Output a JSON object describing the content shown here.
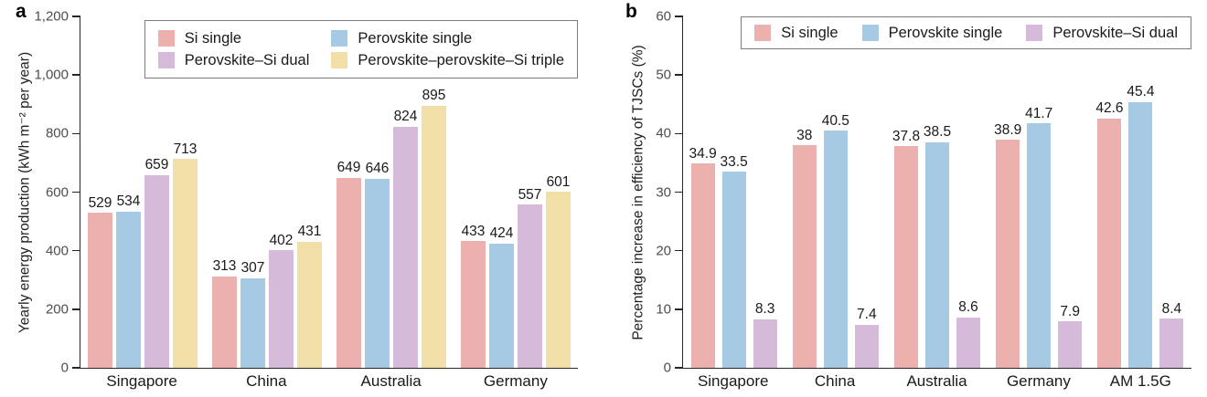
{
  "chart_data": [
    {
      "type": "bar",
      "panel_label": "a",
      "title": "",
      "xlabel": "",
      "ylabel": "Yearly energy production (kWh m⁻² per year)",
      "ylim": [
        0,
        1200
      ],
      "grid": false,
      "legend_position": "top-right-inside",
      "legend_columns": 2,
      "yticks": [
        {
          "value": 0,
          "label": "0"
        },
        {
          "value": 200,
          "label": "200"
        },
        {
          "value": 400,
          "label": "400"
        },
        {
          "value": 600,
          "label": "600"
        },
        {
          "value": 800,
          "label": "800"
        },
        {
          "value": 1000,
          "label": "1,000"
        },
        {
          "value": 1200,
          "label": "1,200"
        }
      ],
      "categories": [
        "Singapore",
        "China",
        "Australia",
        "Germany"
      ],
      "series": [
        {
          "name": "Si single",
          "color": "#ecb1af",
          "values": [
            529,
            313,
            649,
            433
          ],
          "value_labels": [
            "529",
            "313",
            "649",
            "433"
          ]
        },
        {
          "name": "Perovskite single",
          "color": "#a7cae4",
          "values": [
            534,
            307,
            646,
            424
          ],
          "value_labels": [
            "534",
            "307",
            "646",
            "424"
          ]
        },
        {
          "name": "Perovskite–Si dual",
          "color": "#d5bbd9",
          "values": [
            659,
            402,
            824,
            557
          ],
          "value_labels": [
            "659",
            "402",
            "824",
            "557"
          ]
        },
        {
          "name": "Perovskite–perovskite–Si triple",
          "color": "#f2dfa7",
          "values": [
            713,
            431,
            895,
            601
          ],
          "value_labels": [
            "713",
            "431",
            "895",
            "601"
          ]
        }
      ]
    },
    {
      "type": "bar",
      "panel_label": "b",
      "title": "",
      "xlabel": "",
      "ylabel": "Percentage increase in efficiency of TJSCs (%)",
      "ylim": [
        0,
        60
      ],
      "grid": false,
      "legend_position": "top-right-inside",
      "legend_columns": 3,
      "yticks": [
        {
          "value": 0,
          "label": "0"
        },
        {
          "value": 10,
          "label": "10"
        },
        {
          "value": 20,
          "label": "20"
        },
        {
          "value": 30,
          "label": "30"
        },
        {
          "value": 40,
          "label": "40"
        },
        {
          "value": 50,
          "label": "50"
        },
        {
          "value": 60,
          "label": "60"
        }
      ],
      "categories": [
        "Singapore",
        "China",
        "Australia",
        "Germany",
        "AM 1.5G"
      ],
      "series": [
        {
          "name": "Si single",
          "color": "#ecb1af",
          "values": [
            34.9,
            38,
            37.8,
            38.9,
            42.6
          ],
          "value_labels": [
            "34.9",
            "38",
            "37.8",
            "38.9",
            "42.6"
          ]
        },
        {
          "name": "Perovskite single",
          "color": "#a7cae4",
          "values": [
            33.5,
            40.5,
            38.5,
            41.7,
            45.4
          ],
          "value_labels": [
            "33.5",
            "40.5",
            "38.5",
            "41.7",
            "45.4"
          ]
        },
        {
          "name": "Perovskite–Si dual",
          "color": "#d5bbd9",
          "values": [
            8.3,
            7.4,
            8.6,
            7.9,
            8.4
          ],
          "value_labels": [
            "8.3",
            "7.4",
            "8.6",
            "7.9",
            "8.4"
          ]
        }
      ]
    }
  ],
  "colors": {
    "si_single": "#ecb1af",
    "perovskite_single": "#a7cae4",
    "perovskite_si_dual": "#d5bbd9",
    "perovskite_perovskite_si_triple": "#f2dfa7",
    "axis": "#262626",
    "tick_label": "#4d4d4d",
    "text": "#1a1a1a",
    "legend_border": "#7d7d80",
    "background": "#ffffff"
  }
}
